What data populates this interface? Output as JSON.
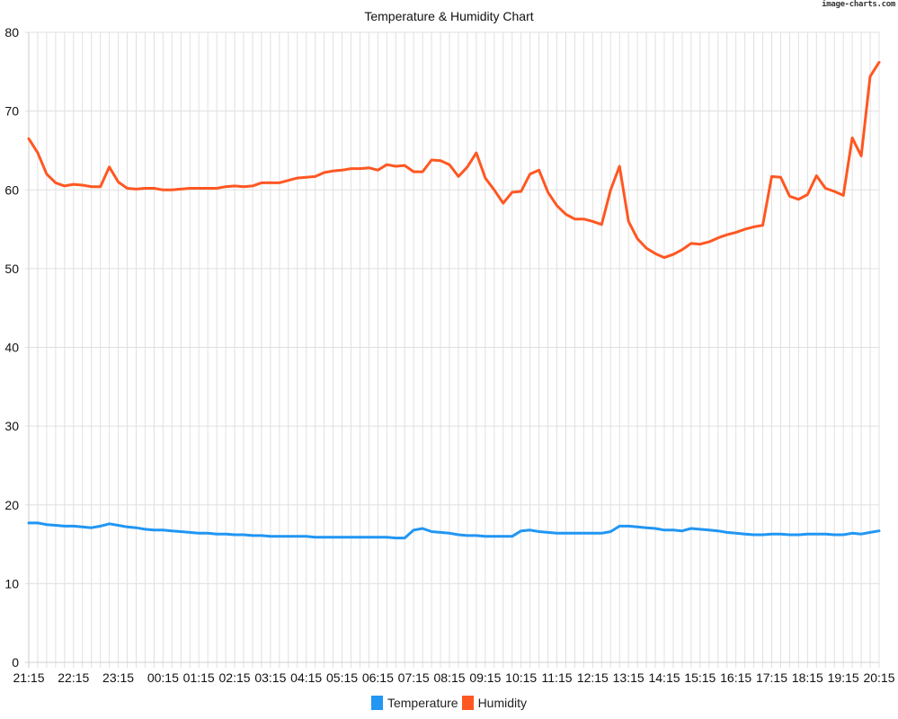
{
  "watermark": "image-charts.com",
  "colors": {
    "temperature": "#2196F3",
    "humidity": "#FF5722",
    "grid": "#e0e0e0",
    "axis_text": "#111111"
  },
  "legend": {
    "temperature_label": "Temperature",
    "humidity_label": "Humidity"
  },
  "chart_data": {
    "type": "line",
    "title": "Temperature & Humidity Chart",
    "xlabel": "",
    "ylabel": "",
    "ylim": [
      0,
      80
    ],
    "yticks": [
      0,
      10,
      20,
      30,
      40,
      50,
      60,
      70,
      80
    ],
    "grid": true,
    "legend_position": "bottom",
    "x_tick_labels": [
      {
        "index": 0,
        "label": "21:15"
      },
      {
        "index": 5,
        "label": "22:15"
      },
      {
        "index": 10,
        "label": "23:15"
      },
      {
        "index": 15,
        "label": "00:15"
      },
      {
        "index": 19,
        "label": "01:15"
      },
      {
        "index": 23,
        "label": "02:15"
      },
      {
        "index": 27,
        "label": "03:15"
      },
      {
        "index": 31,
        "label": "04:15"
      },
      {
        "index": 35,
        "label": "05:15"
      },
      {
        "index": 39,
        "label": "06:15"
      },
      {
        "index": 43,
        "label": "07:15"
      },
      {
        "index": 47,
        "label": "08:15"
      },
      {
        "index": 51,
        "label": "09:15"
      },
      {
        "index": 55,
        "label": "10:15"
      },
      {
        "index": 59,
        "label": "11:15"
      },
      {
        "index": 63,
        "label": "12:15"
      },
      {
        "index": 67,
        "label": "13:15"
      },
      {
        "index": 71,
        "label": "14:15"
      },
      {
        "index": 75,
        "label": "15:15"
      },
      {
        "index": 79,
        "label": "16:15"
      },
      {
        "index": 83,
        "label": "17:15"
      },
      {
        "index": 87,
        "label": "18:15"
      },
      {
        "index": 91,
        "label": "19:15"
      },
      {
        "index": 95,
        "label": "20:15"
      }
    ],
    "point_count": 96,
    "series": [
      {
        "name": "Temperature",
        "color": "#2196F3",
        "values": [
          17.7,
          17.7,
          17.5,
          17.4,
          17.3,
          17.3,
          17.2,
          17.1,
          17.3,
          17.6,
          17.4,
          17.2,
          17.1,
          16.9,
          16.8,
          16.8,
          16.7,
          16.6,
          16.5,
          16.4,
          16.4,
          16.3,
          16.3,
          16.2,
          16.2,
          16.1,
          16.1,
          16.0,
          16.0,
          16.0,
          16.0,
          16.0,
          15.9,
          15.9,
          15.9,
          15.9,
          15.9,
          15.9,
          15.9,
          15.9,
          15.9,
          15.8,
          15.8,
          16.8,
          17.0,
          16.6,
          16.5,
          16.4,
          16.2,
          16.1,
          16.1,
          16.0,
          16.0,
          16.0,
          16.0,
          16.7,
          16.8,
          16.6,
          16.5,
          16.4,
          16.4,
          16.4,
          16.4,
          16.4,
          16.4,
          16.6,
          17.3,
          17.3,
          17.2,
          17.1,
          17.0,
          16.8,
          16.8,
          16.7,
          17.0,
          16.9,
          16.8,
          16.7,
          16.5,
          16.4,
          16.3,
          16.2,
          16.2,
          16.3,
          16.3,
          16.2,
          16.2,
          16.3,
          16.3,
          16.3,
          16.2,
          16.2,
          16.4,
          16.3,
          16.5,
          16.7
        ]
      },
      {
        "name": "Humidity",
        "color": "#FF5722",
        "values": [
          66.5,
          64.7,
          62.0,
          60.9,
          60.5,
          60.7,
          60.6,
          60.4,
          60.4,
          62.9,
          61.0,
          60.2,
          60.1,
          60.2,
          60.2,
          60.0,
          60.0,
          60.1,
          60.2,
          60.2,
          60.2,
          60.2,
          60.4,
          60.5,
          60.4,
          60.5,
          60.9,
          60.9,
          60.9,
          61.2,
          61.5,
          61.6,
          61.7,
          62.2,
          62.4,
          62.5,
          62.7,
          62.7,
          62.8,
          62.5,
          63.2,
          63.0,
          63.1,
          62.3,
          62.3,
          63.8,
          63.7,
          63.2,
          61.7,
          62.9,
          64.7,
          61.5,
          60.0,
          58.3,
          59.7,
          59.8,
          62.0,
          62.5,
          59.7,
          58.0,
          56.9,
          56.3,
          56.3,
          56.0,
          55.6,
          60.0,
          63.0,
          56.0,
          53.8,
          52.6,
          51.9,
          51.4,
          51.8,
          52.4,
          53.2,
          53.1,
          53.4,
          53.9,
          54.3,
          54.6,
          55.0,
          55.3,
          55.5,
          61.7,
          61.6,
          59.2,
          58.8,
          59.4,
          61.8,
          60.2,
          59.8,
          59.3,
          66.6,
          64.3,
          74.4,
          76.2
        ]
      }
    ]
  }
}
